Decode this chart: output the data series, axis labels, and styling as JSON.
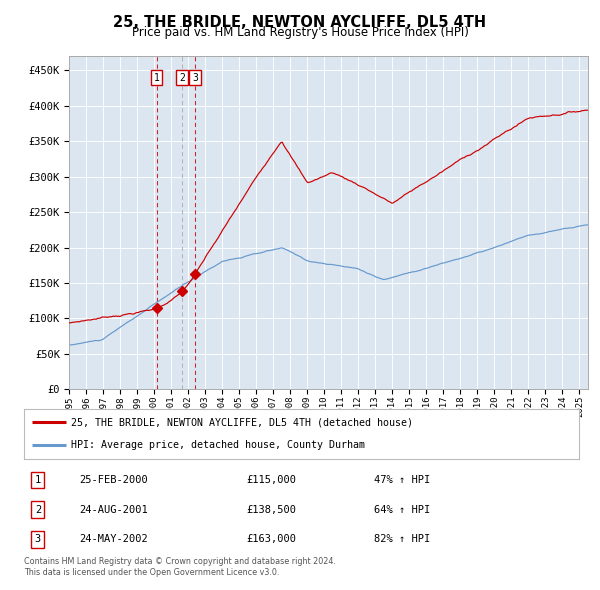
{
  "title": "25, THE BRIDLE, NEWTON AYCLIFFE, DL5 4TH",
  "subtitle": "Price paid vs. HM Land Registry's House Price Index (HPI)",
  "legend_line1": "25, THE BRIDLE, NEWTON AYCLIFFE, DL5 4TH (detached house)",
  "legend_line2": "HPI: Average price, detached house, County Durham",
  "footer1": "Contains HM Land Registry data © Crown copyright and database right 2024.",
  "footer2": "This data is licensed under the Open Government Licence v3.0.",
  "table_rows": [
    {
      "num": "1",
      "date": "25-FEB-2000",
      "price": "£115,000",
      "hpi": "47% ↑ HPI"
    },
    {
      "num": "2",
      "date": "24-AUG-2001",
      "price": "£138,500",
      "hpi": "64% ↑ HPI"
    },
    {
      "num": "3",
      "date": "24-MAY-2002",
      "price": "£163,000",
      "hpi": "82% ↑ HPI"
    }
  ],
  "sale_dates": [
    2000.15,
    2001.65,
    2002.4
  ],
  "sale_prices": [
    115000,
    138500,
    163000
  ],
  "background_color": "#dce6f1",
  "red_color": "#cc0000",
  "blue_color": "#6699cc",
  "vline_colors": [
    "#cc0000",
    "#aaaaaa",
    "#cc0000"
  ],
  "ylim": [
    0,
    470000
  ],
  "xlim_start": 1995.0,
  "xlim_end": 2025.5,
  "yticks": [
    0,
    50000,
    100000,
    150000,
    200000,
    250000,
    300000,
    350000,
    400000,
    450000
  ]
}
